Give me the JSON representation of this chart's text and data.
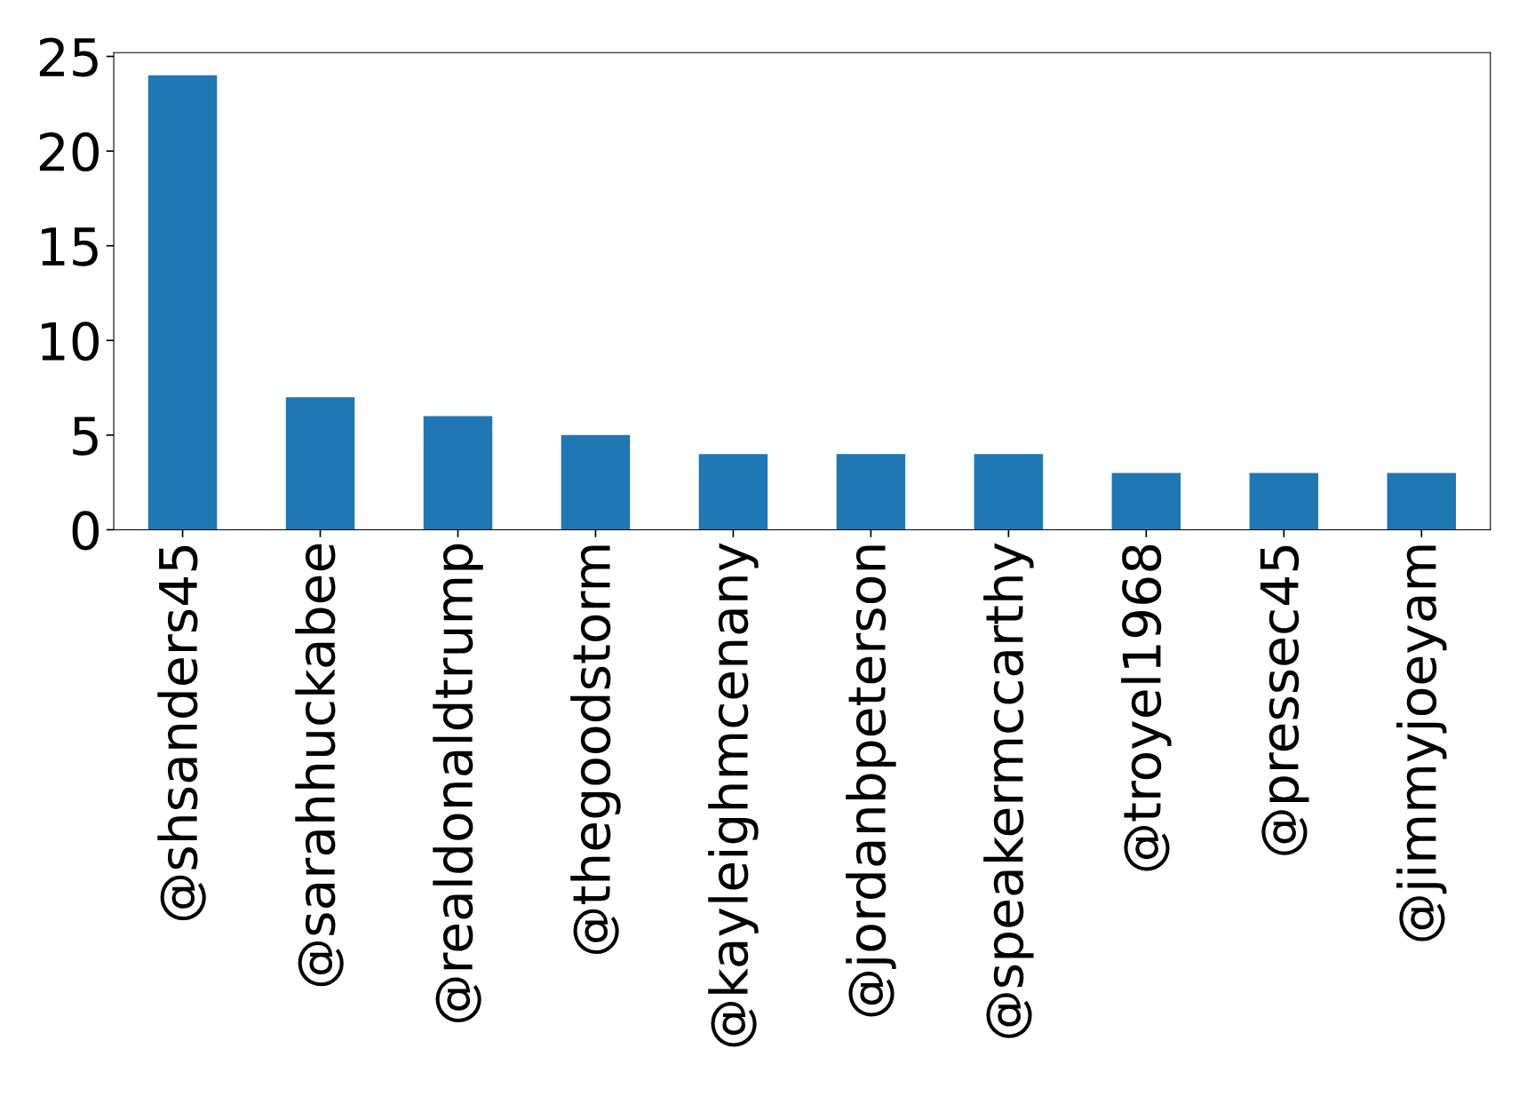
{
  "chart_data": {
    "type": "bar",
    "categories": [
      "@shsanders45",
      "@sarahhuckabee",
      "@realdonaldtrump",
      "@thegoodstorm",
      "@kayleighmcenany",
      "@jordanbpeterson",
      "@speakermccarthy",
      "@troyel1968",
      "@pressec45",
      "@jimmyjoeyam"
    ],
    "values": [
      24,
      7,
      6,
      5,
      4,
      4,
      4,
      3,
      3,
      3
    ],
    "color": "#1f77b4",
    "ylim": [
      0,
      25.2
    ],
    "yticks": [
      0,
      5,
      10,
      15,
      20,
      25
    ],
    "grid": false
  }
}
